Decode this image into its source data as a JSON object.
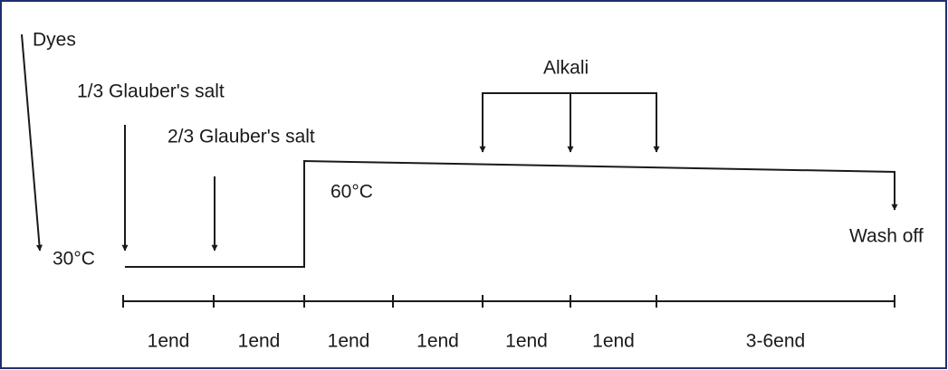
{
  "labels": {
    "dyes": "Dyes",
    "salt_first": "1/3 Glauber's salt",
    "salt_second": "2/3 Glauber's salt",
    "alkali": "Alkali",
    "temp_low": "30°C",
    "temp_high": "60°C",
    "wash_off": "Wash off"
  },
  "time_segments": [
    "1end",
    "1end",
    "1end",
    "1end",
    "1end",
    "1end",
    "3-6end"
  ]
}
